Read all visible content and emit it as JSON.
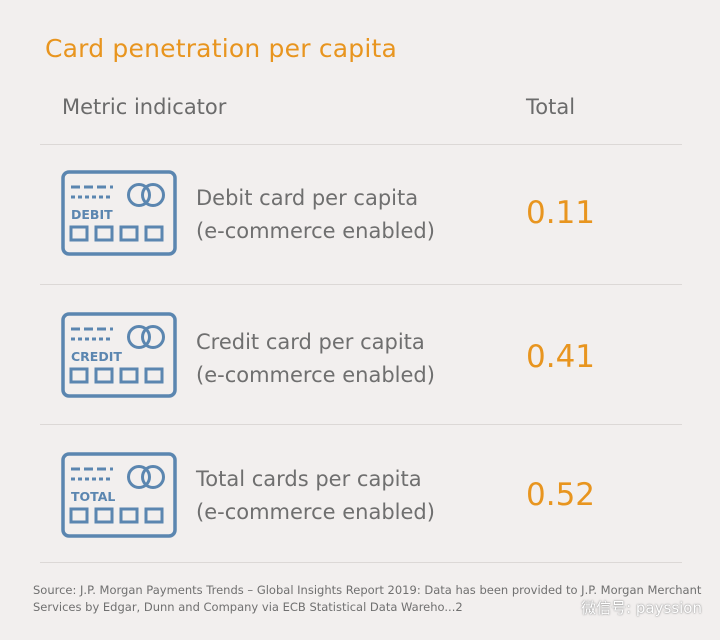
{
  "title": "Card penetration per capita",
  "headers": {
    "metric": "Metric indicator",
    "total": "Total"
  },
  "rows": [
    {
      "icon": "debit-card-icon",
      "card_text": "DEBIT",
      "label_line1": "Debit card per capita",
      "label_line2": "(e-commerce enabled)",
      "value": "0.11"
    },
    {
      "icon": "credit-card-icon",
      "card_text": "CREDIT",
      "label_line1": "Credit card per capita",
      "label_line2": "(e-commerce enabled)",
      "value": "0.41"
    },
    {
      "icon": "total-card-icon",
      "card_text": "TOTAL",
      "label_line1": "Total cards per capita",
      "label_line2": "(e-commerce enabled)",
      "value": "0.52"
    }
  ],
  "source": "Source: J.P. Morgan Payments Trends – Global Insights Report 2019: Data has been provided to J.P. Morgan Merchant Services by Edgar, Dunn and Company via ECB Statistical Data Wareho...2",
  "watermark": "微信号: payssion",
  "colors": {
    "accent": "#e8951f",
    "icon_blue": "#5b86b0",
    "text_gray": "#6f6f6f",
    "background": "#f2efee"
  }
}
